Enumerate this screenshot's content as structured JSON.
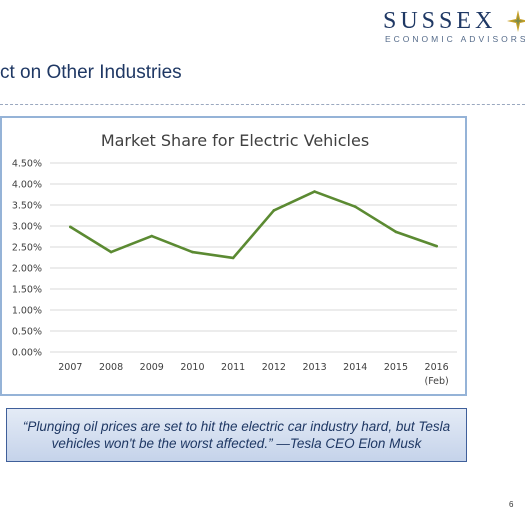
{
  "brand": {
    "name": "SUSSEX",
    "subtitle": "ECONOMIC ADVISORS",
    "logo_icon": "compass-star-icon"
  },
  "slide": {
    "title": "ct on Other Industries",
    "page_number": "6"
  },
  "quote": {
    "text": "“Plunging oil prices are set to hit the electric car industry hard, but Tesla vehicles won't be the worst affected.” —Tesla CEO Elon Musk"
  },
  "chart_data": {
    "type": "line",
    "title": "Market Share for Electric Vehicles",
    "xlabel": "",
    "ylabel": "",
    "categories": [
      "2007",
      "2008",
      "2009",
      "2010",
      "2011",
      "2012",
      "2013",
      "2014",
      "2015",
      "2016"
    ],
    "category_sublabels": [
      "",
      "",
      "",
      "",
      "",
      "",
      "",
      "",
      "",
      "(Feb)"
    ],
    "series": [
      {
        "values": [
          2.98,
          2.38,
          2.76,
          2.38,
          2.24,
          3.37,
          3.82,
          3.46,
          2.86,
          2.52
        ]
      }
    ],
    "ylim": [
      0,
      4.5
    ],
    "yticks": [
      0,
      0.5,
      1,
      1.5,
      2,
      2.5,
      3,
      3.5,
      4,
      4.5
    ],
    "ytick_labels": [
      "0.00%",
      "0.50%",
      "1.00%",
      "1.50%",
      "2.00%",
      "2.50%",
      "3.00%",
      "3.50%",
      "4.00%",
      "4.50%"
    ],
    "grid": true,
    "legend": "none",
    "line_color": "#5b8a32",
    "grid_color": "#d9d9d9"
  }
}
